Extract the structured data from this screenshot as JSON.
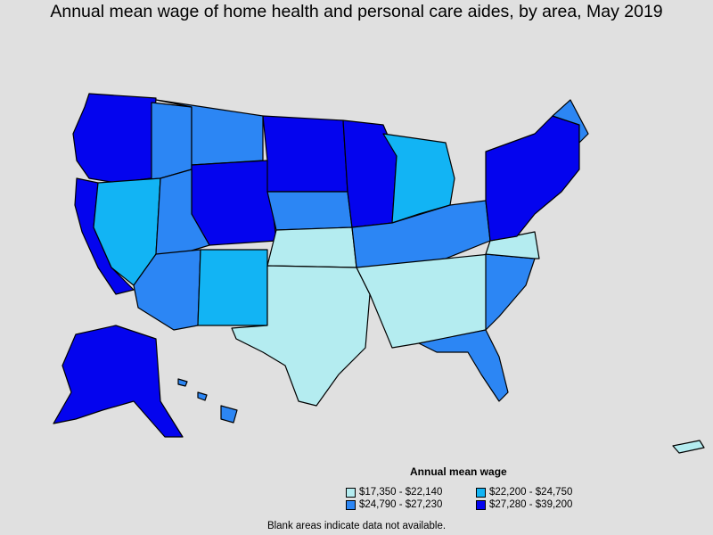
{
  "title": "Annual mean wage of home health and personal care aides, by area, May 2019",
  "legend": {
    "title": "Annual mean wage",
    "items": [
      {
        "label": "$17,350 - $22,140",
        "color": "#b4ecf0"
      },
      {
        "label": "$22,200 - $24,750",
        "color": "#12b4f4"
      },
      {
        "label": "$24,790 - $27,230",
        "color": "#2c86f4"
      },
      {
        "label": "$27,280 - $39,200",
        "color": "#0404ee"
      }
    ]
  },
  "footnote": "Blank areas indicate data not available.",
  "colors": {
    "background": "#e0e0e0",
    "low": "#b4ecf0",
    "mid_low": "#12b4f4",
    "mid_high": "#2c86f4",
    "high": "#0404ee"
  }
}
